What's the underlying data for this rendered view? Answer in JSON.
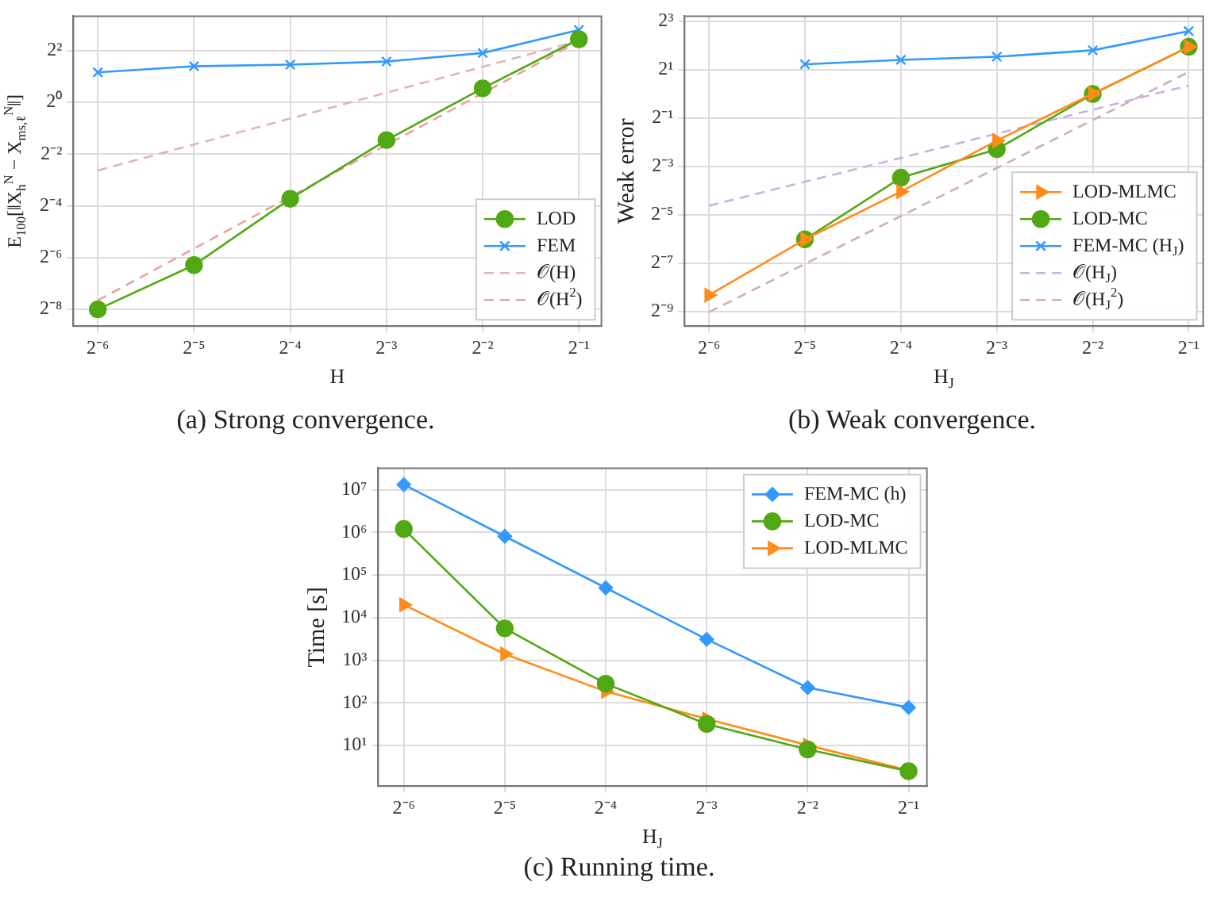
{
  "chart_data": [
    {
      "type": "line",
      "title": "(a) Strong convergence.",
      "xlabel": "H",
      "ylabel": "E$_{100}$[‖X$_{h}$$^{N}$ − X$_{ms,ℓ}$$^{N}$‖]",
      "log": "xy",
      "grid": true,
      "legend": "bottom right",
      "x": [
        0.015625,
        0.03125,
        0.0625,
        0.125,
        0.25,
        0.5
      ],
      "xlim": [
        0.0131,
        0.588
      ],
      "ylim": [
        0.0025,
        10
      ],
      "xticks": [
        {
          "value": 0.015625,
          "label": "2⁻⁶"
        },
        {
          "value": 0.03125,
          "label": "2⁻⁵"
        },
        {
          "value": 0.0625,
          "label": "2⁻⁴"
        },
        {
          "value": 0.125,
          "label": "2⁻³"
        },
        {
          "value": 0.25,
          "label": "2⁻²"
        },
        {
          "value": 0.5,
          "label": "2⁻¹"
        }
      ],
      "yticks": [
        {
          "value": 0.00390625,
          "label": "2⁻⁸"
        },
        {
          "value": 0.015625,
          "label": "2⁻⁶"
        },
        {
          "value": 0.0625,
          "label": "2⁻⁴"
        },
        {
          "value": 0.25,
          "label": "2⁻²"
        },
        {
          "value": 1,
          "label": "2⁰"
        },
        {
          "value": 4,
          "label": "2²"
        }
      ],
      "series": [
        {
          "name": "LOD",
          "color": "#52a813",
          "marker": "circle",
          "line_style": "solid",
          "values": [
            0.00391,
            0.0128,
            0.0754,
            0.363,
            1.45,
            5.39
          ]
        },
        {
          "name": "FEM",
          "color": "#3399ff",
          "marker": "cross",
          "line_style": "solid",
          "values": [
            2.22,
            2.62,
            2.73,
            2.97,
            3.73,
            6.92
          ]
        },
        {
          "name": "𝒪(H)",
          "color": "#e0b4b4",
          "marker": "none",
          "line_style": "dashed",
          "values": [
            0.161,
            0.323,
            0.646,
            1.29,
            2.58,
            5.17
          ]
        },
        {
          "name": "𝒪(H$^{2}$)",
          "color": "#eea0a0",
          "marker": "none",
          "line_style": "dashed",
          "values": [
            0.00498,
            0.0199,
            0.0797,
            0.319,
            1.27,
            5.1
          ]
        }
      ]
    },
    {
      "type": "line",
      "title": "(b) Weak convergence.",
      "xlabel": "H$_{J}$",
      "ylabel": "Weak error",
      "log": "xy",
      "grid": true,
      "legend": "bottom right",
      "x": [
        0.015625,
        0.03125,
        0.0625,
        0.125,
        0.25,
        0.5
      ],
      "xlim": [
        0.0131,
        0.555
      ],
      "ylim": [
        0.00128,
        9.25
      ],
      "xticks": [
        {
          "value": 0.015625,
          "label": "2⁻⁶"
        },
        {
          "value": 0.03125,
          "label": "2⁻⁵"
        },
        {
          "value": 0.0625,
          "label": "2⁻⁴"
        },
        {
          "value": 0.125,
          "label": "2⁻³"
        },
        {
          "value": 0.25,
          "label": "2⁻²"
        },
        {
          "value": 0.5,
          "label": "2⁻¹"
        }
      ],
      "yticks": [
        {
          "value": 0.001953125,
          "label": "2⁻⁹"
        },
        {
          "value": 0.0078125,
          "label": "2⁻⁷"
        },
        {
          "value": 0.03125,
          "label": "2⁻⁵"
        },
        {
          "value": 0.125,
          "label": "2⁻³"
        },
        {
          "value": 0.5,
          "label": "2⁻¹"
        },
        {
          "value": 2,
          "label": "2¹"
        },
        {
          "value": 8,
          "label": "2³"
        }
      ],
      "series": [
        {
          "name": "LOD-MLMC",
          "color": "#ff8c1a",
          "marker": "triangle",
          "line_style": "solid",
          "values": [
            0.00311,
            0.0154,
            0.0604,
            0.261,
            1.0,
            3.84
          ]
        },
        {
          "name": "LOD-MC",
          "color": "#52a813",
          "marker": "circle",
          "line_style": "solid",
          "values": [
            null,
            0.0154,
            0.0902,
            0.204,
            0.993,
            3.84
          ]
        },
        {
          "name": "FEM-MC (H$_{J}$)",
          "color": "#3399ff",
          "marker": "cross",
          "line_style": "solid",
          "values": [
            null,
            2.33,
            2.64,
            2.89,
            3.48,
            6.02
          ]
        },
        {
          "name": "𝒪(H$_{J}$)",
          "color": "#c6b3e6",
          "marker": "none",
          "line_style": "dashed",
          "values": [
            0.0404,
            0.0802,
            0.159,
            0.319,
            0.633,
            1.27
          ]
        },
        {
          "name": "𝒪(H$_{J}$$^{2}$)",
          "color": "#d2aeae",
          "marker": "none",
          "line_style": "dashed",
          "values": [
            0.00191,
            0.00761,
            0.03,
            0.119,
            0.47,
            1.87
          ]
        }
      ]
    },
    {
      "type": "line",
      "title": "(c) Running time.",
      "xlabel": "H$_{J}$",
      "ylabel": "Time [s]",
      "log": "xy",
      "grid": true,
      "legend": "top right",
      "x": [
        0.015625,
        0.03125,
        0.0625,
        0.125,
        0.25,
        0.5
      ],
      "xlim": [
        0.0131,
        0.567
      ],
      "ylim": [
        1.12,
        32000000
      ],
      "xticks": [
        {
          "value": 0.015625,
          "label": "2⁻⁶"
        },
        {
          "value": 0.03125,
          "label": "2⁻⁵"
        },
        {
          "value": 0.0625,
          "label": "2⁻⁴"
        },
        {
          "value": 0.125,
          "label": "2⁻³"
        },
        {
          "value": 0.25,
          "label": "2⁻²"
        },
        {
          "value": 0.5,
          "label": "2⁻¹"
        }
      ],
      "yticks": [
        {
          "value": 10,
          "label": "10¹"
        },
        {
          "value": 100,
          "label": "10²"
        },
        {
          "value": 1000,
          "label": "10³"
        },
        {
          "value": 10000,
          "label": "10⁴"
        },
        {
          "value": 100000,
          "label": "10⁵"
        },
        {
          "value": 1000000,
          "label": "10⁶"
        },
        {
          "value": 10000000,
          "label": "10⁷"
        }
      ],
      "series": [
        {
          "name": "FEM-MC (h)",
          "color": "#3399ff",
          "marker": "diamond",
          "line_style": "solid",
          "values": [
            13200000,
            810000,
            50000,
            3100,
            229,
            78
          ]
        },
        {
          "name": "LOD-MC",
          "color": "#52a813",
          "marker": "circle",
          "line_style": "solid",
          "values": [
            1200000,
            5600,
            282,
            32,
            8.1,
            2.5
          ]
        },
        {
          "name": "LOD-MLMC",
          "color": "#ff8c1a",
          "marker": "triangle",
          "line_style": "solid",
          "values": [
            20000,
            1400,
            186,
            42,
            10.2,
            2.6
          ]
        }
      ]
    }
  ]
}
